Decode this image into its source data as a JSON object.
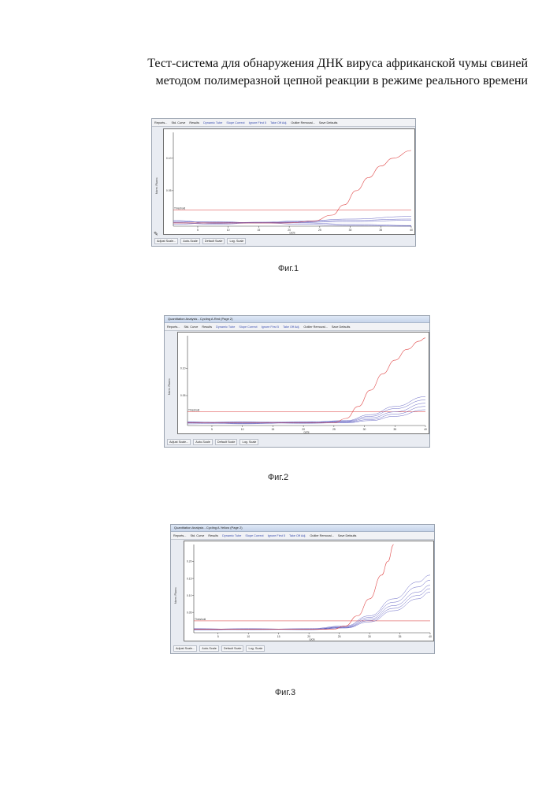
{
  "title": {
    "line1": "Тест-система для обнаружения ДНК вируса африканской чумы свиней",
    "line2": "методом полимеразной цепной реакции в режиме реального времени"
  },
  "colors": {
    "positive": "#e04848",
    "negative": "#4a4ab8",
    "threshold": "#d83030"
  },
  "figures": [
    {
      "caption": "Фиг.1",
      "window_title": "",
      "toolbar": [
        "Reports...",
        "Std. Curve",
        "Results",
        "Dynamic Tube",
        "Slope Correct",
        "Ignore First 5",
        "Take Off Adj.",
        "Outlier Removal...",
        "Save Defaults"
      ],
      "bottom_buttons": [
        "Adjust Scale...",
        "Auto-Scale",
        "Default Scale",
        "Log. Scale"
      ],
      "y_axis_label": "Norm. Fluoro.",
      "x_axis_label": "cycle",
      "threshold_label": "Threshold",
      "chart_data": {
        "type": "line",
        "xlim": [
          1,
          40
        ],
        "ylim": [
          -0.005,
          0.14
        ],
        "x_ticks": [
          "5",
          "10",
          "15",
          "20",
          "25",
          "30",
          "35",
          "40"
        ],
        "y_ticks": [
          "0.05",
          "0.10"
        ],
        "threshold": 0.02,
        "positive": {
          "x": [
            1,
            20,
            24,
            27,
            29,
            31,
            33,
            35,
            37,
            40
          ],
          "y": [
            0.0,
            0.0,
            0.003,
            0.012,
            0.028,
            0.05,
            0.07,
            0.088,
            0.1,
            0.112
          ]
        },
        "negatives": [
          {
            "x": [
              1,
              8,
              15,
              22,
              30,
              40
            ],
            "y": [
              0.004,
              -0.001,
              0.001,
              0.003,
              0.006,
              0.01
            ]
          },
          {
            "x": [
              1,
              8,
              15,
              22,
              30,
              40
            ],
            "y": [
              0.002,
              0.001,
              0.0,
              0.001,
              0.002,
              0.004
            ]
          },
          {
            "x": [
              1,
              8,
              15,
              22,
              30,
              40
            ],
            "y": [
              -0.002,
              0.0,
              0.001,
              0.0,
              -0.002,
              -0.004
            ]
          },
          {
            "x": [
              1,
              8,
              15,
              22,
              30,
              40
            ],
            "y": [
              0.001,
              0.002,
              0.0,
              -0.002,
              -0.004,
              -0.007
            ]
          },
          {
            "x": [
              1,
              8,
              15,
              22,
              30,
              40
            ],
            "y": [
              0.0,
              -0.002,
              0.0,
              0.002,
              0.004,
              0.006
            ]
          }
        ]
      }
    },
    {
      "caption": "Фиг.2",
      "window_title": "Quantitation Analysis - Cycling A.Red (Page 2)",
      "toolbar": [
        "Reports...",
        "Std. Curve",
        "Results",
        "Dynamic Tube",
        "Slope Correct",
        "Ignore First 5",
        "Take Off Adj.",
        "Outlier Removal...",
        "Save Defaults"
      ],
      "bottom_buttons": [
        "Adjust Scale...",
        "Auto-Scale",
        "Default Scale",
        "Log. Scale"
      ],
      "y_axis_label": "Norm. Fluoro.",
      "x_axis_label": "cycle",
      "threshold_label": "Threshold",
      "chart_data": {
        "type": "line",
        "xlim": [
          1,
          40
        ],
        "ylim": [
          -0.005,
          0.16
        ],
        "x_ticks": [
          "5",
          "10",
          "15",
          "20",
          "25",
          "30",
          "35",
          "40"
        ],
        "y_ticks": [
          "0.05",
          "0.10"
        ],
        "threshold": 0.02,
        "positive": {
          "x": [
            1,
            25,
            27,
            29,
            31,
            33,
            35,
            37,
            39,
            40
          ],
          "y": [
            0.0,
            0.0,
            0.008,
            0.03,
            0.06,
            0.09,
            0.115,
            0.135,
            0.15,
            0.156
          ]
        },
        "negatives": [
          {
            "x": [
              1,
              10,
              20,
              27,
              31,
              35,
              40
            ],
            "y": [
              0.002,
              -0.001,
              0.001,
              0.004,
              0.015,
              0.03,
              0.048
            ]
          },
          {
            "x": [
              1,
              10,
              20,
              27,
              31,
              35,
              40
            ],
            "y": [
              0.0,
              0.002,
              0.0,
              0.003,
              0.012,
              0.026,
              0.042
            ]
          },
          {
            "x": [
              1,
              10,
              20,
              27,
              31,
              35,
              40
            ],
            "y": [
              -0.002,
              0.0,
              0.002,
              0.002,
              0.009,
              0.02,
              0.036
            ]
          },
          {
            "x": [
              1,
              10,
              20,
              27,
              31,
              35,
              40
            ],
            "y": [
              0.001,
              -0.002,
              0.0,
              0.001,
              0.006,
              0.016,
              0.03
            ]
          },
          {
            "x": [
              1,
              10,
              20,
              27,
              31,
              35,
              40
            ],
            "y": [
              0.0,
              0.001,
              -0.001,
              0.0,
              0.004,
              0.012,
              0.024
            ]
          }
        ]
      }
    },
    {
      "caption": "Фиг.3",
      "window_title": "Quantitation Analysis - Cycling A.Yellow (Page 2)",
      "toolbar": [
        "Reports...",
        "Std. Curve",
        "Results",
        "Dynamic Tube",
        "Slope Correct",
        "Ignore First 5",
        "Take Off Adj.",
        "Outlier Removal...",
        "Save Defaults"
      ],
      "bottom_buttons": [
        "Adjust Scale...",
        "Auto-Scale",
        "Default Scale",
        "Log. Scale"
      ],
      "y_axis_label": "Norm. Fluoro.",
      "x_axis_label": "cycle",
      "threshold_label": "Threshold",
      "chart_data": {
        "type": "line",
        "xlim": [
          1,
          40
        ],
        "ylim": [
          -0.01,
          0.25
        ],
        "x_ticks": [
          "5",
          "10",
          "15",
          "20",
          "25",
          "30",
          "35",
          "40"
        ],
        "y_ticks": [
          "0.05",
          "0.10",
          "0.15",
          "0.20"
        ],
        "threshold": 0.025,
        "positive": {
          "x": [
            1,
            24,
            26,
            28,
            30,
            32,
            33,
            34
          ],
          "y": [
            0.0,
            0.0,
            0.01,
            0.04,
            0.09,
            0.16,
            0.2,
            0.25
          ]
        },
        "negatives": [
          {
            "x": [
              1,
              10,
              20,
              26,
              30,
              34,
              38,
              40
            ],
            "y": [
              0.002,
              0.0,
              0.002,
              0.01,
              0.04,
              0.09,
              0.14,
              0.16
            ]
          },
          {
            "x": [
              1,
              10,
              20,
              26,
              30,
              34,
              38,
              40
            ],
            "y": [
              0.0,
              0.002,
              0.0,
              0.008,
              0.035,
              0.08,
              0.125,
              0.145
            ]
          },
          {
            "x": [
              1,
              10,
              20,
              26,
              30,
              34,
              38,
              40
            ],
            "y": [
              -0.002,
              0.0,
              0.001,
              0.006,
              0.03,
              0.07,
              0.11,
              0.13
            ]
          },
          {
            "x": [
              1,
              10,
              20,
              26,
              30,
              34,
              38,
              40
            ],
            "y": [
              0.001,
              -0.001,
              0.0,
              0.005,
              0.026,
              0.062,
              0.1,
              0.12
            ]
          },
          {
            "x": [
              1,
              10,
              20,
              26,
              30,
              34,
              38,
              40
            ],
            "y": [
              0.0,
              0.001,
              -0.001,
              0.004,
              0.022,
              0.055,
              0.09,
              0.11
            ]
          }
        ]
      }
    }
  ]
}
